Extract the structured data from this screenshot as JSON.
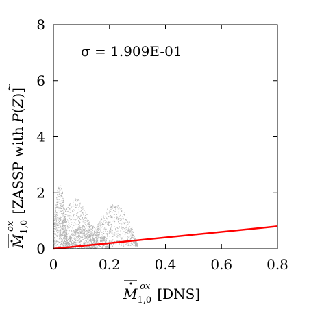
{
  "chart_data": {
    "type": "scatter",
    "title": "",
    "xlabel": "M̄·ox1,0 [DNS]",
    "ylabel": "M̄·ox1,0 [ZASSP with P̃(Z)]",
    "xlim": [
      0,
      0.8
    ],
    "ylim": [
      0,
      8
    ],
    "x_ticks": [
      "0",
      "0.2",
      "0.4",
      "0.6",
      "0.8"
    ],
    "y_ticks": [
      "0",
      "2",
      "4",
      "6",
      "8"
    ],
    "grid": false,
    "legend": "none",
    "annotation": "σ = 1.909E-01",
    "series": [
      {
        "kind": "line",
        "color": "#ff0000",
        "points": [
          [
            0,
            0
          ],
          [
            0.8,
            0.8
          ]
        ]
      },
      {
        "kind": "scatter",
        "color": "#b0b0b0",
        "clusters": [
          {
            "x_range": [
              0.0,
              0.05
            ],
            "y_range": [
              0.0,
              2.3
            ]
          },
          {
            "x_range": [
              0.02,
              0.15
            ],
            "y_range": [
              0.0,
              1.8
            ]
          },
          {
            "x_range": [
              0.05,
              0.2
            ],
            "y_range": [
              0.0,
              0.9
            ]
          },
          {
            "x_range": [
              0.15,
              0.3
            ],
            "y_range": [
              0.1,
              1.6
            ]
          }
        ]
      }
    ]
  }
}
